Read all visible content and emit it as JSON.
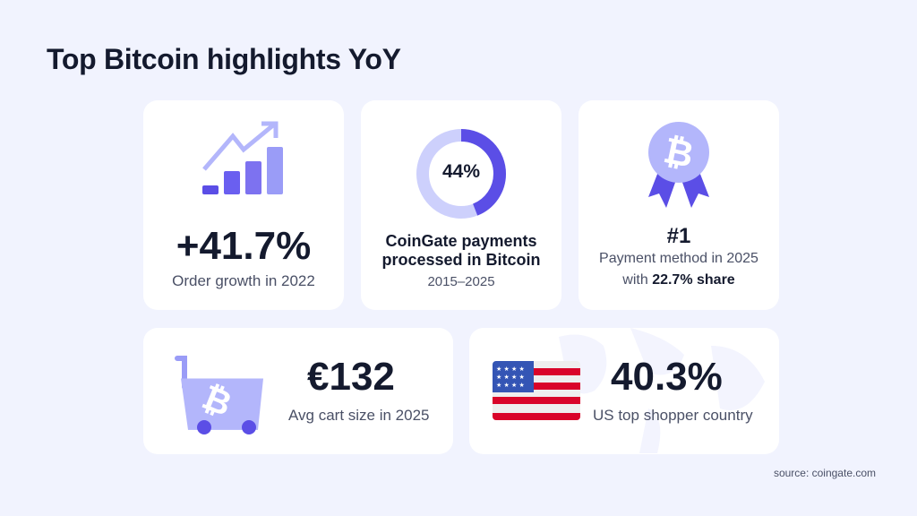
{
  "title": "Top Bitcoin highlights YoY",
  "cards": [
    {
      "icon": "growth-chart-icon",
      "value": "+41.7%",
      "label": "Order growth in 2022"
    },
    {
      "icon": "donut-chart",
      "donut_value": "44%",
      "donut_fraction": 0.44,
      "label_line1": "CoinGate payments",
      "label_line2": "processed in Bitcoin",
      "sub": "2015–2025"
    },
    {
      "icon": "bitcoin-award-icon",
      "value": "#1",
      "label_line1": "Payment method in 2025",
      "label_prefix": "with ",
      "label_bold": "22.7% share"
    },
    {
      "icon": "bitcoin-cart-icon",
      "value": "€132",
      "label": "Avg cart size in 2025"
    },
    {
      "icon": "us-flag-icon",
      "value": "40.3%",
      "label": "US top shopper country"
    }
  ],
  "source": "source: coingate.com",
  "colors": {
    "accent": "#5b4ee6",
    "mid": "#7d72f0",
    "light": "#b3b6fb",
    "pale": "#cdd0fc",
    "background": "#f1f3fe",
    "flag_red": "#d90429",
    "flag_blue": "#3455b5"
  }
}
